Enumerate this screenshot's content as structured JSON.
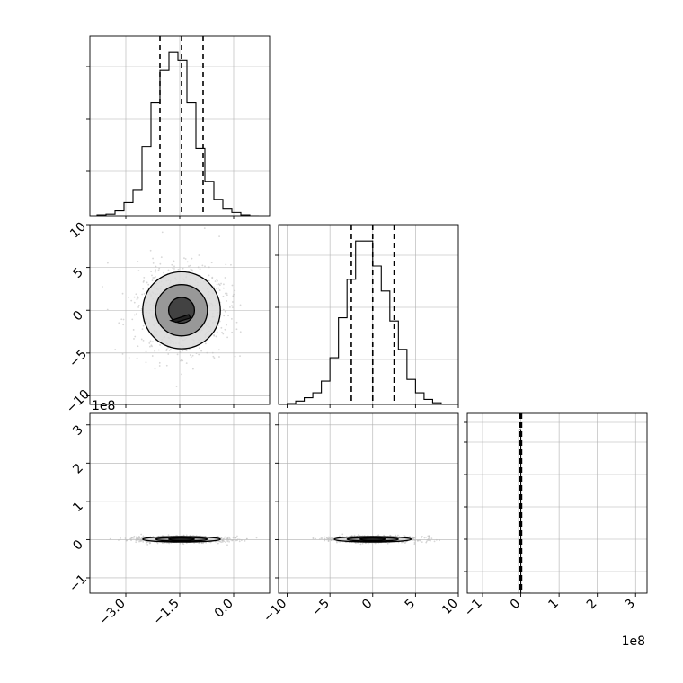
{
  "chart_data": {
    "type": "corner",
    "figure": {
      "title": "",
      "background": "#ffffff"
    },
    "colors": {
      "line": "#000000",
      "grid": "#b0b0b0",
      "scatter": "#bdbdbd",
      "density_light": "#d9d9d9",
      "density_mid": "#8c8c8c",
      "density_dark": "#333333"
    },
    "histograms": [
      {
        "param": 0,
        "xlim": [
          -4.0,
          1.0
        ],
        "bin_edges": [
          -3.8,
          -3.55,
          -3.3,
          -3.05,
          -2.8,
          -2.55,
          -2.3,
          -2.05,
          -1.8,
          -1.55,
          -1.3,
          -1.05,
          -0.8,
          -0.55,
          -0.3,
          -0.05,
          0.2,
          0.45,
          0.7
        ],
        "counts": [
          0.005,
          0.01,
          0.03,
          0.08,
          0.16,
          0.42,
          0.69,
          0.89,
          1.0,
          0.95,
          0.69,
          0.41,
          0.21,
          0.1,
          0.04,
          0.02,
          0.005,
          0.0
        ],
        "quantiles": [
          -2.05,
          -1.45,
          -0.85
        ],
        "y_ticks": [
          0.25,
          0.54,
          0.83
        ]
      },
      {
        "param": 1,
        "xlim": [
          -11.0,
          10.0
        ],
        "bin_edges": [
          -10,
          -9,
          -8,
          -7,
          -6,
          -5,
          -4,
          -3,
          -2,
          -1,
          0,
          1,
          2,
          3,
          4,
          5,
          6,
          7,
          8,
          9
        ],
        "counts": [
          0.005,
          0.02,
          0.04,
          0.07,
          0.14,
          0.28,
          0.52,
          0.75,
          0.98,
          0.98,
          0.83,
          0.68,
          0.5,
          0.33,
          0.15,
          0.07,
          0.03,
          0.01,
          0.0
        ],
        "quantiles": [
          -2.5,
          0.0,
          2.5
        ],
        "y_ticks": [
          0.25,
          0.54,
          0.83
        ]
      },
      {
        "param": 2,
        "xlim": [
          -1.4,
          3.3
        ],
        "bin_edges": [
          -0.3,
          -0.05,
          0.0,
          0.25
        ],
        "counts": [
          0.0,
          1.0,
          0.0
        ],
        "quantiles": [
          -0.02,
          0.0,
          0.02
        ],
        "y_ticks": [
          0.12,
          0.3,
          0.48,
          0.66,
          0.84,
          0.95
        ]
      }
    ],
    "scatter_panels": [
      {
        "x_param": 0,
        "y_param": 1,
        "xlim": [
          -4.0,
          1.0
        ],
        "ylim": [
          -11.0,
          10.0
        ],
        "center": [
          -1.45,
          0.0
        ],
        "sigma": [
          0.6,
          2.5
        ],
        "contour_radii_sigma": [
          0.6,
          1.2,
          1.8
        ],
        "inner_blob": [
          [
            -1.75,
            -1.2
          ],
          [
            -1.25,
            -0.5
          ],
          [
            -1.2,
            -0.9
          ],
          [
            -1.6,
            -1.4
          ]
        ]
      },
      {
        "x_param": 0,
        "y_param": 2,
        "xlim": [
          -4.0,
          1.0
        ],
        "ylim": [
          -1.4,
          3.3
        ],
        "center": [
          -1.45,
          0.01
        ],
        "sigma": [
          0.6,
          0.04
        ],
        "contour_radii_sigma": [
          0.6,
          1.2,
          1.8
        ]
      },
      {
        "x_param": 1,
        "y_param": 2,
        "xlim": [
          -11.0,
          10.0
        ],
        "ylim": [
          -1.4,
          3.3
        ],
        "center": [
          0.0,
          0.01
        ],
        "sigma": [
          2.5,
          0.04
        ],
        "contour_radii_sigma": [
          0.6,
          1.2,
          1.8
        ]
      }
    ],
    "axes": {
      "param0_ticks": [
        -3.0,
        -1.5,
        0.0
      ],
      "param0_tick_labels": [
        "−3.0",
        "−1.5",
        "0.0"
      ],
      "param1_ticks": [
        -10,
        -5,
        0,
        5,
        10
      ],
      "param1_tick_labels": [
        "−10",
        "−5",
        "0",
        "5",
        "10"
      ],
      "param2_ticks": [
        -1,
        0,
        1,
        2,
        3
      ],
      "param2_tick_labels": [
        "−1",
        "0",
        "1",
        "2",
        "3"
      ]
    },
    "offset_labels": [
      "1e8",
      "1e8"
    ]
  }
}
